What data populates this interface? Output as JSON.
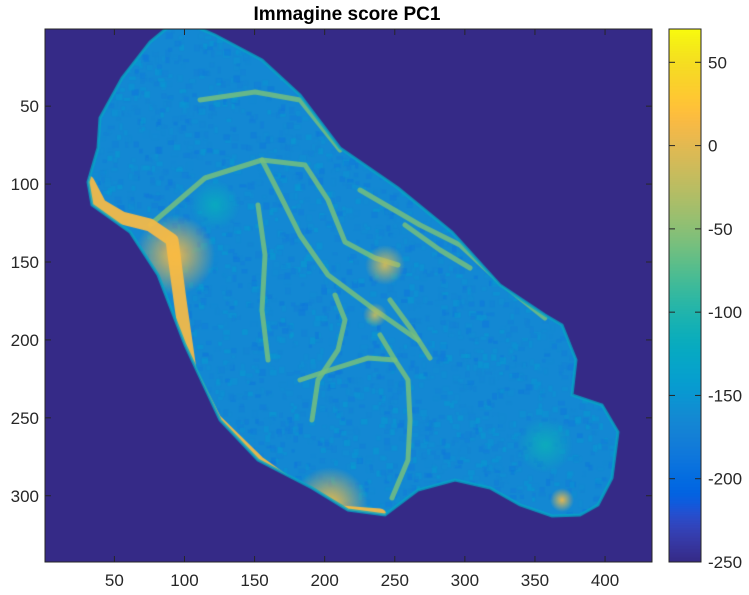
{
  "chart_data": {
    "type": "heatmap",
    "title": "Immagine score PC1",
    "xlabel": "",
    "ylabel": "",
    "xlim": [
      0.5,
      433.5
    ],
    "ylim": [
      0.5,
      342.5
    ],
    "y_reversed": true,
    "x_ticks": [
      50,
      100,
      150,
      200,
      250,
      300,
      350,
      400
    ],
    "y_ticks": [
      50,
      100,
      150,
      200,
      250,
      300
    ],
    "colorbar": {
      "colormap": "parula",
      "clim": [
        -250,
        70
      ],
      "ticks": [
        50,
        0,
        -50,
        -100,
        -150,
        -200,
        -250
      ],
      "location": "right"
    },
    "background_value": -250,
    "tissue_base_value": -165,
    "vein_value": -60,
    "hot_value": 10,
    "features": {
      "outline": [
        [
          178,
          19
        ],
        [
          215,
          35
        ],
        [
          262,
          60
        ],
        [
          300,
          95
        ],
        [
          340,
          148
        ],
        [
          398,
          188
        ],
        [
          452,
          232
        ],
        [
          500,
          285
        ],
        [
          545,
          315
        ],
        [
          562,
          325
        ],
        [
          576,
          360
        ],
        [
          572,
          395
        ],
        [
          602,
          405
        ],
        [
          618,
          432
        ],
        [
          612,
          478
        ],
        [
          598,
          505
        ],
        [
          580,
          515
        ],
        [
          552,
          516
        ],
        [
          520,
          505
        ],
        [
          490,
          488
        ],
        [
          455,
          480
        ],
        [
          418,
          490
        ],
        [
          385,
          515
        ],
        [
          348,
          510
        ],
        [
          312,
          488
        ],
        [
          258,
          460
        ],
        [
          220,
          420
        ],
        [
          185,
          345
        ],
        [
          158,
          275
        ],
        [
          130,
          232
        ],
        [
          92,
          205
        ],
        [
          88,
          182
        ],
        [
          98,
          148
        ],
        [
          100,
          118
        ],
        [
          122,
          78
        ],
        [
          150,
          42
        ]
      ],
      "boundary_hot": [
        [
          88,
          182
        ],
        [
          100,
          205
        ],
        [
          122,
          218
        ],
        [
          150,
          225
        ],
        [
          172,
          240
        ],
        [
          180,
          300
        ],
        [
          190,
          370
        ],
        [
          215,
          420
        ],
        [
          258,
          462
        ],
        [
          300,
          492
        ],
        [
          340,
          512
        ],
        [
          380,
          515
        ]
      ],
      "veins": [
        [
          [
            150,
            225
          ],
          [
            205,
            178
          ],
          [
            262,
            160
          ],
          [
            305,
            165
          ],
          [
            328,
            200
          ],
          [
            345,
            242
          ],
          [
            375,
            258
          ],
          [
            398,
            265
          ]
        ],
        [
          [
            262,
            160
          ],
          [
            280,
            195
          ],
          [
            300,
            235
          ],
          [
            328,
            275
          ],
          [
            375,
            310
          ],
          [
            418,
            340
          ]
        ],
        [
          [
            258,
            205
          ],
          [
            265,
            255
          ],
          [
            262,
            310
          ],
          [
            268,
            360
          ]
        ],
        [
          [
            390,
            300
          ],
          [
            412,
            330
          ],
          [
            430,
            358
          ]
        ],
        [
          [
            405,
            225
          ],
          [
            440,
            250
          ],
          [
            470,
            268
          ]
        ],
        [
          [
            335,
            295
          ],
          [
            345,
            320
          ],
          [
            338,
            350
          ],
          [
            318,
            380
          ],
          [
            312,
            420
          ]
        ],
        [
          [
            380,
            335
          ],
          [
            395,
            360
          ],
          [
            408,
            380
          ],
          [
            410,
            420
          ],
          [
            408,
            460
          ],
          [
            392,
            498
          ]
        ],
        [
          [
            300,
            380
          ],
          [
            330,
            370
          ],
          [
            368,
            358
          ],
          [
            395,
            360
          ]
        ],
        [
          [
            200,
            100
          ],
          [
            255,
            92
          ],
          [
            300,
            100
          ],
          [
            340,
            150
          ]
        ],
        [
          [
            360,
            190
          ],
          [
            420,
            225
          ],
          [
            460,
            245
          ],
          [
            500,
            282
          ],
          [
            545,
            318
          ]
        ]
      ],
      "hot_spots": [
        {
          "x": 175,
          "y": 255,
          "r": 40,
          "value": 15
        },
        {
          "x": 330,
          "y": 505,
          "r": 38,
          "value": 20
        },
        {
          "x": 385,
          "y": 265,
          "r": 20,
          "value": -10
        },
        {
          "x": 375,
          "y": 315,
          "r": 12,
          "value": -20
        },
        {
          "x": 562,
          "y": 500,
          "r": 12,
          "value": 5
        },
        {
          "x": 545,
          "y": 445,
          "r": 28,
          "value": -115
        },
        {
          "x": 215,
          "y": 205,
          "r": 25,
          "value": -120
        }
      ]
    }
  }
}
